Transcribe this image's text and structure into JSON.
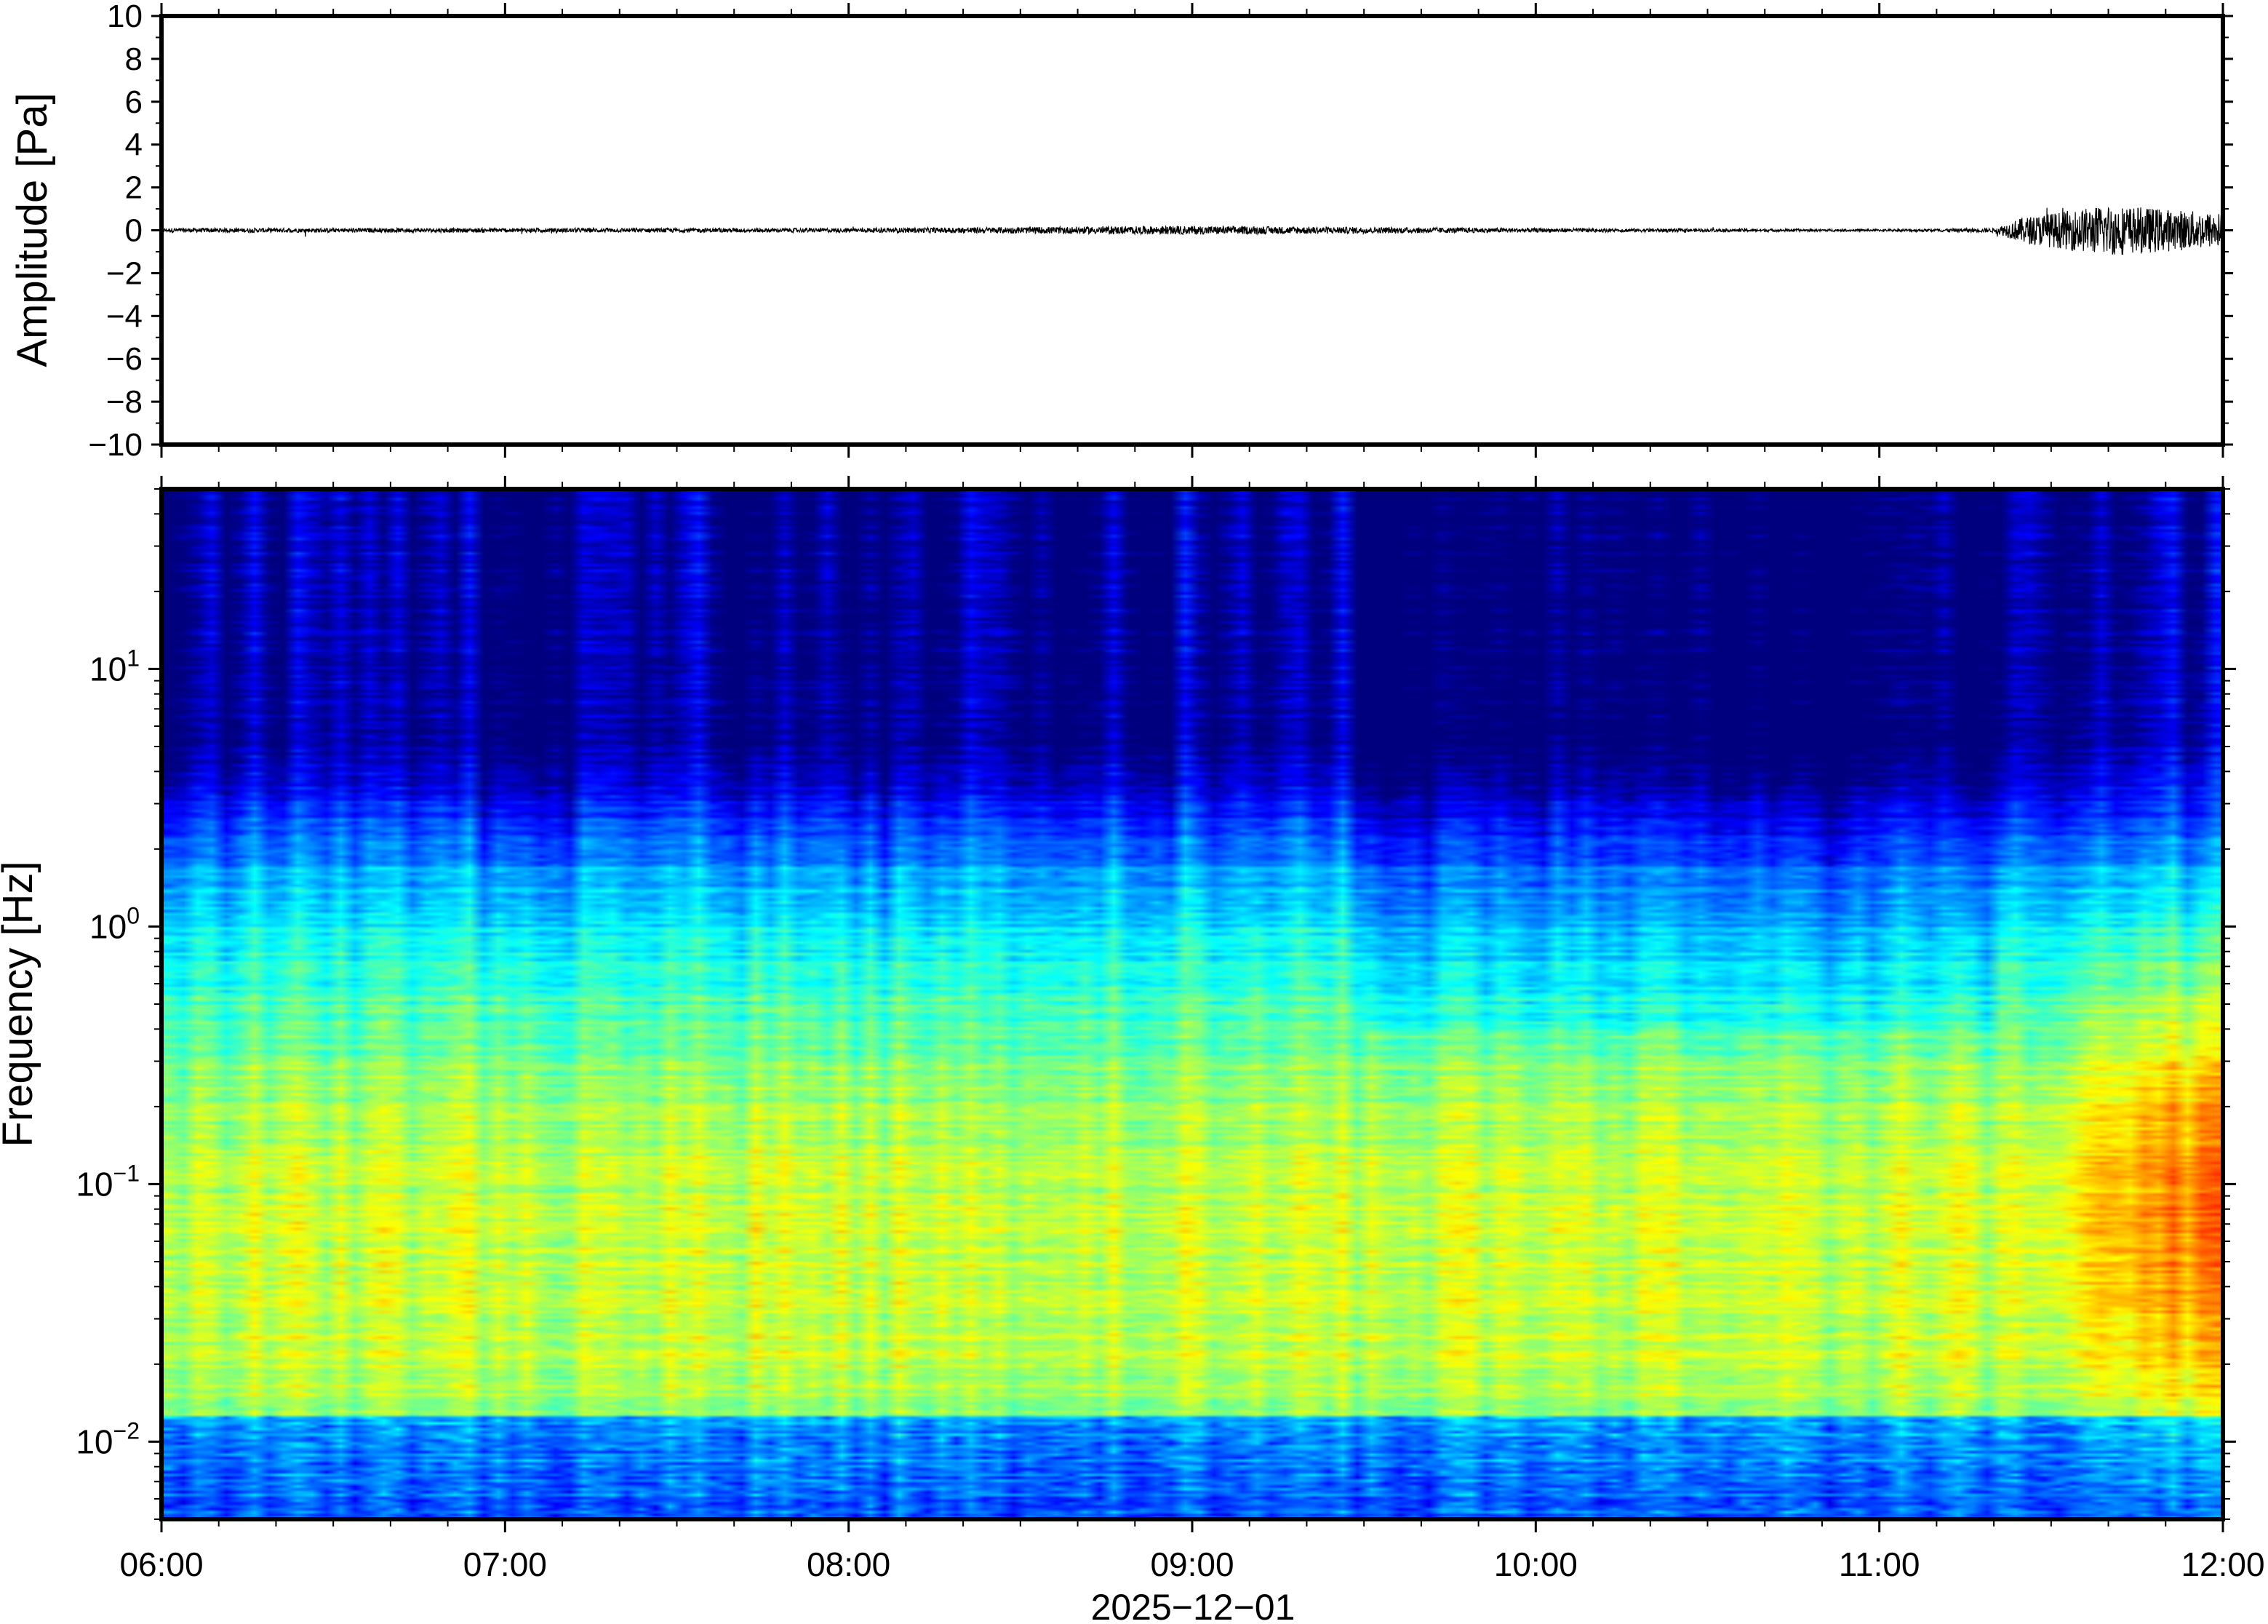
{
  "chart_data": [
    {
      "type": "line",
      "title": "",
      "ylabel": "Amplitude [Pa]",
      "ylim": [
        -10,
        10
      ],
      "yticks": [
        -10,
        -8,
        -6,
        -4,
        -2,
        0,
        2,
        4,
        6,
        8,
        10
      ],
      "ytick_labels": [
        "−10",
        "−8",
        "−6",
        "−4",
        "−2",
        "0",
        "2",
        "4",
        "6",
        "8",
        "10"
      ],
      "x_range": [
        "06:00",
        "12:00"
      ],
      "series": [
        {
          "values_description_free": true,
          "x": [
            "06:00",
            "07:00",
            "08:00",
            "09:00",
            "10:00",
            "11:00",
            "11:20",
            "11:25",
            "11:40",
            "11:50",
            "12:00"
          ],
          "y_envelope": [
            0.1,
            0.1,
            0.1,
            0.2,
            0.1,
            0.05,
            0.1,
            0.6,
            1.2,
            1.0,
            0.8
          ],
          "color": "#000000"
        }
      ]
    },
    {
      "type": "heatmap",
      "ylabel": "Frequency [Hz]",
      "xlabel": "2025−12−01",
      "yscale": "log",
      "ylim": [
        0.005,
        50
      ],
      "yticks": [
        0.01,
        0.1,
        1,
        10
      ],
      "ytick_labels": [
        {
          "base": "10",
          "exp": "−2"
        },
        {
          "base": "10",
          "exp": "−1"
        },
        {
          "base": "10",
          "exp": "0"
        },
        {
          "base": "10",
          "exp": "1"
        }
      ],
      "xtick_labels": [
        "06:00",
        "07:00",
        "08:00",
        "09:00",
        "10:00",
        "11:00",
        "12:00"
      ],
      "colormap": [
        "#00007f",
        "#0000ff",
        "#007fff",
        "#00ffff",
        "#7fff7f",
        "#ffff00",
        "#ff7f00",
        "#ff0000"
      ]
    }
  ]
}
